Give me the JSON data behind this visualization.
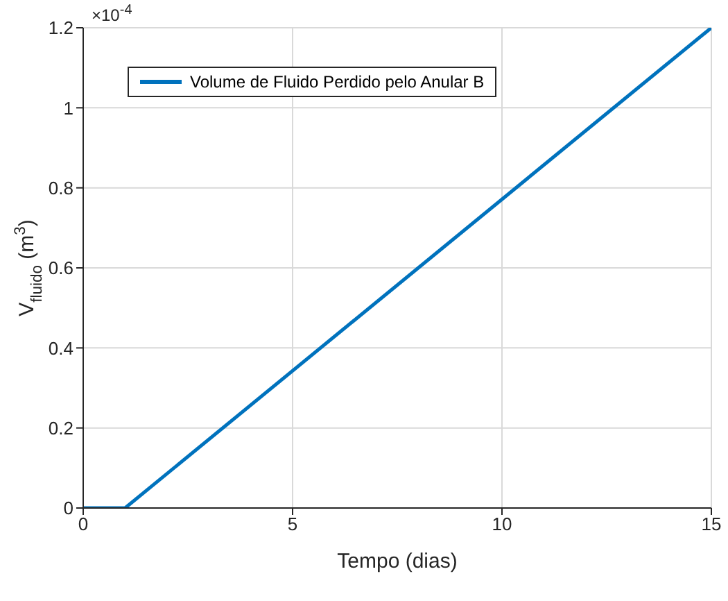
{
  "chart_data": {
    "type": "line",
    "xlabel": "Tempo (dias)",
    "ylabel": "V$_{fluido}$ (m$^{3}$)",
    "x": [
      0,
      1,
      15
    ],
    "series": [
      {
        "name": "Volume de Fluido Perdido pelo Anular B",
        "color": "#0072bd",
        "values": [
          0,
          0,
          1.2
        ]
      }
    ],
    "xlim": [
      0,
      15
    ],
    "xticks": [
      0,
      5,
      10,
      15
    ],
    "ylim": [
      0,
      1.2
    ],
    "yticks": [
      0,
      0.2,
      0.4,
      0.6,
      0.8,
      1,
      1.2
    ],
    "annotations": [
      "×10$^{-4}$"
    ],
    "grid": true,
    "legend": "top left",
    "marker": "none",
    "line_style": "solid"
  }
}
